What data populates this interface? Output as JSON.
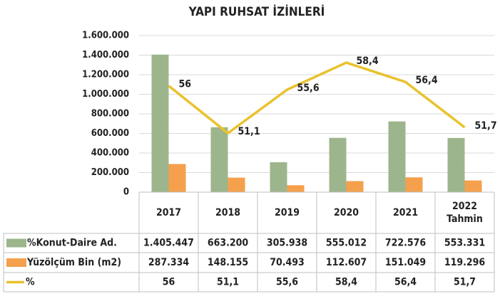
{
  "chart_data": {
    "type": "bar",
    "title": "YAPI RUHSAT İZİNLERİ",
    "categories": [
      "2017",
      "2018",
      "2019",
      "2020",
      "2021",
      "2022 Tahmin"
    ],
    "series": [
      {
        "name": "%Konut-Daire Ad.",
        "type": "bar",
        "color": "#9db58c",
        "values": [
          1405447,
          663200,
          305938,
          555012,
          722576,
          553331
        ],
        "value_labels": [
          "1.405.447",
          "663.200",
          "305.938",
          "555.012",
          "722.576",
          "553.331"
        ]
      },
      {
        "name": "Yüzölçüm Bin (m2)",
        "type": "bar",
        "color": "#f5a04c",
        "values": [
          287334,
          148155,
          70493,
          112607,
          151049,
          119296
        ],
        "value_labels": [
          "287.334",
          "148.155",
          "70.493",
          "112.607",
          "151.049",
          "119.296"
        ]
      },
      {
        "name": "%",
        "type": "line",
        "axis": "y2",
        "color": "#e9c22e",
        "values": [
          56,
          51.1,
          55.6,
          58.4,
          56.4,
          51.7
        ],
        "value_labels": [
          "56",
          "51,1",
          "55,6",
          "58,4",
          "56,4",
          "51,7"
        ]
      }
    ],
    "ylim": [
      0,
      1600000
    ],
    "yticks": [
      {
        "value": 0,
        "label": "0"
      },
      {
        "value": 200000,
        "label": "200.000"
      },
      {
        "value": 400000,
        "label": "400.000"
      },
      {
        "value": 600000,
        "label": "600.000"
      },
      {
        "value": 800000,
        "label": "800.000"
      },
      {
        "value": 1000000,
        "label": "1.000.000"
      },
      {
        "value": 1200000,
        "label": "1.200.000"
      },
      {
        "value": 1400000,
        "label": "1.400.000"
      },
      {
        "value": 1600000,
        "label": "1.600.000"
      }
    ],
    "y2lim": [
      45,
      61.2
    ],
    "grid": true
  }
}
